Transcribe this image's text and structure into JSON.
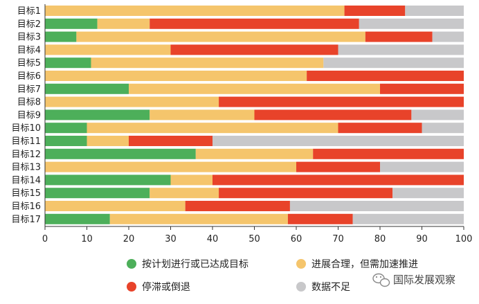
{
  "chart_data": {
    "type": "bar",
    "orientation": "horizontal",
    "stacked": true,
    "categories": [
      "目标1",
      "目标2",
      "目标3",
      "目标4",
      "目标5",
      "目标6",
      "目标7",
      "目标8",
      "目标9",
      "目标10",
      "目标11",
      "目标12",
      "目标13",
      "目标14",
      "目标15",
      "目标16",
      "目标17"
    ],
    "series": [
      {
        "name": "按计划进行或已达成目标",
        "color": "#4daf5a",
        "values": [
          0,
          12.5,
          7.5,
          0,
          11,
          0,
          20,
          0,
          25,
          10,
          10,
          36,
          0,
          30,
          25,
          0,
          15.5
        ]
      },
      {
        "name": "进展合理，但需加速推进",
        "color": "#f5c56c",
        "values": [
          71.5,
          12.5,
          69,
          30,
          55.5,
          62.5,
          60,
          41.5,
          25,
          60,
          10,
          28,
          60,
          10,
          16.5,
          33.5,
          42.5
        ]
      },
      {
        "name": "停滞或倒退",
        "color": "#e8432a",
        "values": [
          14.5,
          50,
          16,
          40,
          0,
          37.5,
          20,
          58.5,
          37.5,
          20,
          20,
          36,
          20,
          60,
          41.5,
          25,
          15.5
        ]
      },
      {
        "name": "数据不足",
        "color": "#c8c8ca",
        "values": [
          14,
          25,
          7.5,
          30,
          33.5,
          0,
          0,
          0,
          12.5,
          10,
          60,
          0,
          20,
          0,
          17,
          41.5,
          26.5
        ]
      }
    ],
    "xlim": [
      0,
      100
    ],
    "xticks": [
      "0",
      "10",
      "20",
      "30",
      "40",
      "50",
      "60",
      "70",
      "80",
      "90",
      "100"
    ],
    "grid": false,
    "legend_position": "bottom"
  },
  "watermark": {
    "text": "国际发展观察"
  }
}
